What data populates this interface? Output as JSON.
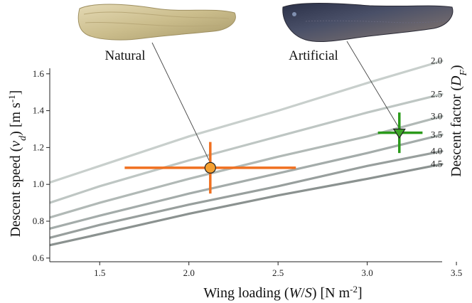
{
  "chart_data": {
    "type": "line",
    "xlabel": "Wing loading (W/S) [N m⁻²]",
    "ylabel": "Descent speed (v_d) [m s⁻¹]",
    "right_axis_title": "Descent factor (D_F)",
    "xlim": [
      1.22,
      3.42
    ],
    "ylim": [
      0.58,
      1.63
    ],
    "xticks": [
      1.5,
      2.0,
      2.5,
      3.0,
      3.5
    ],
    "yticks": [
      0.6,
      0.8,
      1.0,
      1.2,
      1.4,
      1.6
    ],
    "xtick_labels": [
      "1.5",
      "2.0",
      "2.5",
      "3.0",
      "3.5"
    ],
    "ytick_labels": [
      "0.6",
      "0.8",
      "1.0",
      "1.2",
      "1.4",
      "1.6"
    ],
    "series": [
      {
        "name": "2.0",
        "color": "#c8cfcc",
        "x": [
          1.22,
          1.5,
          2.0,
          2.5,
          3.0,
          3.42
        ],
        "y": [
          1.01,
          1.1,
          1.26,
          1.4,
          1.55,
          1.67
        ]
      },
      {
        "name": "2.5",
        "color": "#bec6c3",
        "x": [
          1.22,
          1.5,
          2.0,
          2.5,
          3.0,
          3.42
        ],
        "y": [
          0.9,
          0.99,
          1.13,
          1.26,
          1.39,
          1.49
        ]
      },
      {
        "name": "3.0",
        "color": "#b1b9b6",
        "x": [
          1.22,
          1.5,
          2.0,
          2.5,
          3.0,
          3.42
        ],
        "y": [
          0.82,
          0.9,
          1.03,
          1.15,
          1.26,
          1.37
        ]
      },
      {
        "name": "3.5",
        "color": "#a4acaa",
        "x": [
          1.22,
          1.5,
          2.0,
          2.5,
          3.0,
          3.42
        ],
        "y": [
          0.76,
          0.83,
          0.95,
          1.06,
          1.17,
          1.27
        ]
      },
      {
        "name": "4.0",
        "color": "#989f9d",
        "x": [
          1.22,
          1.5,
          2.0,
          2.5,
          3.0,
          3.42
        ],
        "y": [
          0.71,
          0.78,
          0.89,
          0.99,
          1.1,
          1.18
        ]
      },
      {
        "name": "4.5",
        "color": "#8b9290",
        "x": [
          1.22,
          1.5,
          2.0,
          2.5,
          3.0,
          3.42
        ],
        "y": [
          0.67,
          0.73,
          0.84,
          0.94,
          1.03,
          1.11
        ]
      }
    ],
    "points": [
      {
        "name": "Natural",
        "x": 2.12,
        "y": 1.09,
        "xerr": [
          1.64,
          2.6
        ],
        "yerr": [
          0.95,
          1.23
        ],
        "color": "#f07020",
        "marker": "circle",
        "fill": "#f5a030"
      },
      {
        "name": "Artificial",
        "x": 3.18,
        "y": 1.28,
        "xerr": [
          3.06,
          3.31
        ],
        "yerr": [
          1.17,
          1.39
        ],
        "color": "#2a9a1a",
        "marker": "triangle-down",
        "fill": "#3fa82a"
      }
    ],
    "grid": false
  },
  "labels": {
    "natural": "Natural",
    "artificial": "Artificial",
    "df_title": "Descent factor (D_F)"
  }
}
